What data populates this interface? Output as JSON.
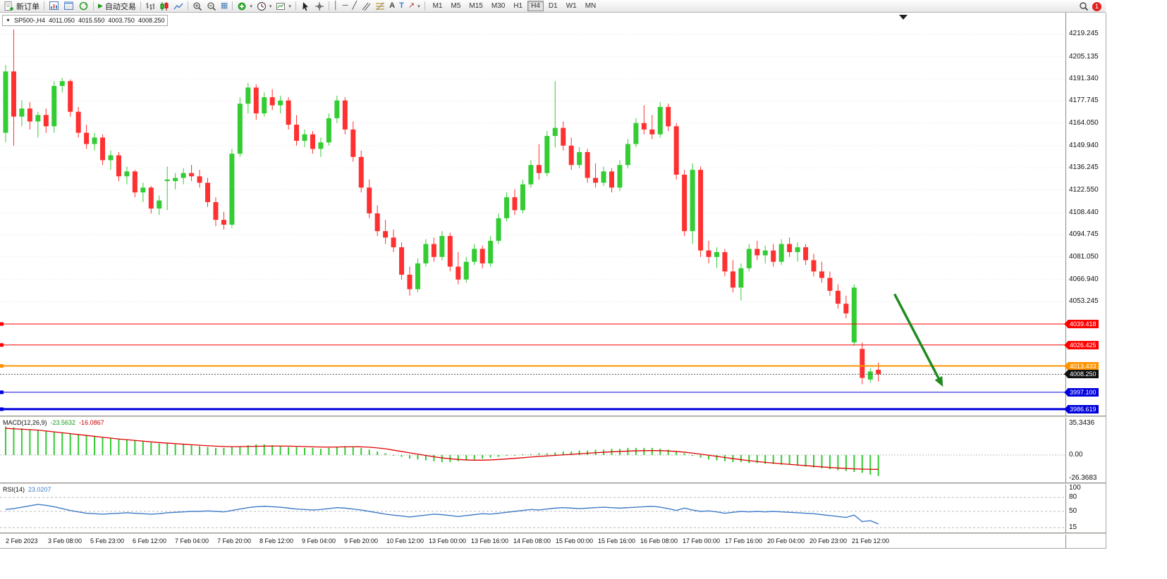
{
  "toolbar": {
    "new_order": "新订单",
    "auto_trading": "自动交易",
    "timeframes": [
      "M1",
      "M5",
      "M15",
      "M30",
      "H1",
      "H4",
      "D1",
      "W1",
      "MN"
    ],
    "active_timeframe": "H4",
    "notification_count": "1"
  },
  "icons": {
    "collapse": "▼",
    "dropdown": "▾",
    "play": "▶",
    "tile": "▦",
    "vertical_line": "│",
    "horizontal_line": "─",
    "trend_line": "╱",
    "text_tool": "A",
    "label_tool": "T",
    "arrow_tool": "↗"
  },
  "chart_header": {
    "symbol_period": "SP500-,H4",
    "open": "4011.050",
    "high": "4015.550",
    "low": "4003.750",
    "close": "4008.250"
  },
  "indicators": {
    "macd_title": "MACD(12,26,9)",
    "macd_main": "-23.5632",
    "macd_signal": "-16.0867",
    "rsi_title": "RSI(14)",
    "rsi_value": "23.0207"
  },
  "colors": {
    "bull": "#33CC33",
    "bear": "#FF3030",
    "macd_hist": "#33CC33",
    "macd_signal": "#E00000",
    "rsi_line": "#3E7BC8",
    "grid": "#E2E2E2",
    "arrow": "#1F8B1F"
  },
  "chart_data": [
    {
      "type": "candlestick",
      "title": "SP500-,H4",
      "ylim": [
        3982.6,
        4232.4
      ],
      "y_ticks": [
        "4219.245",
        "4205.135",
        "4191.340",
        "4177.745",
        "4164.050",
        "4149.940",
        "4136.245",
        "4122.550",
        "4108.440",
        "4094.745",
        "4081.050",
        "4066.940",
        "4053.245"
      ],
      "x_labels": [
        "2 Feb 2023",
        "3 Feb 08:00",
        "5 Feb 23:00",
        "6 Feb 12:00",
        "7 Feb 04:00",
        "7 Feb 20:00",
        "8 Feb 12:00",
        "9 Feb 04:00",
        "9 Feb 20:00",
        "10 Feb 12:00",
        "13 Feb 00:00",
        "13 Feb 16:00",
        "14 Feb 08:00",
        "15 Feb 00:00",
        "15 Feb 16:00",
        "16 Feb 08:00",
        "17 Feb 00:00",
        "17 Feb 16:00",
        "20 Feb 04:00",
        "20 Feb 23:00",
        "21 Feb 12:00"
      ],
      "ohlc": [
        [
          4158,
          4200,
          4152,
          4196
        ],
        [
          4196,
          4222,
          4150,
          4168
        ],
        [
          4168,
          4178,
          4162,
          4173
        ],
        [
          4173,
          4177,
          4160,
          4165
        ],
        [
          4165,
          4171,
          4155,
          4169
        ],
        [
          4169,
          4173,
          4158,
          4162
        ],
        [
          4162,
          4190,
          4158,
          4187
        ],
        [
          4187,
          4192,
          4183,
          4190
        ],
        [
          4190,
          4191,
          4168,
          4171
        ],
        [
          4171,
          4174,
          4155,
          4158
        ],
        [
          4158,
          4163,
          4148,
          4151
        ],
        [
          4151,
          4158,
          4147,
          4155
        ],
        [
          4155,
          4157,
          4138,
          4141
        ],
        [
          4141,
          4147,
          4135,
          4144
        ],
        [
          4144,
          4146,
          4128,
          4131
        ],
        [
          4131,
          4137,
          4126,
          4134
        ],
        [
          4134,
          4135,
          4118,
          4121
        ],
        [
          4121,
          4127,
          4115,
          4124
        ],
        [
          4124,
          4125,
          4108,
          4111
        ],
        [
          4111,
          4119,
          4107,
          4116
        ],
        [
          4128,
          4137,
          4110,
          4129
        ],
        [
          4128,
          4133,
          4123,
          4130
        ],
        [
          4130,
          4136,
          4126,
          4133
        ],
        [
          4133,
          4138,
          4128,
          4131
        ],
        [
          4131,
          4135,
          4124,
          4127
        ],
        [
          4127,
          4130,
          4112,
          4115
        ],
        [
          4115,
          4118,
          4100,
          4104
        ],
        [
          4104,
          4109,
          4098,
          4101
        ],
        [
          4101,
          4148,
          4099,
          4145
        ],
        [
          4145,
          4180,
          4143,
          4176
        ],
        [
          4176,
          4189,
          4170,
          4186
        ],
        [
          4186,
          4188,
          4166,
          4170
        ],
        [
          4170,
          4183,
          4168,
          4180
        ],
        [
          4180,
          4185,
          4172,
          4175
        ],
        [
          4175,
          4181,
          4170,
          4178
        ],
        [
          4178,
          4180,
          4160,
          4163
        ],
        [
          4163,
          4169,
          4150,
          4153
        ],
        [
          4153,
          4160,
          4149,
          4157
        ],
        [
          4157,
          4159,
          4145,
          4148
        ],
        [
          4148,
          4155,
          4143,
          4152
        ],
        [
          4152,
          4170,
          4150,
          4167
        ],
        [
          4167,
          4181,
          4164,
          4178
        ],
        [
          4178,
          4180,
          4157,
          4160
        ],
        [
          4160,
          4165,
          4140,
          4143
        ],
        [
          4143,
          4147,
          4121,
          4124
        ],
        [
          4124,
          4129,
          4105,
          4108
        ],
        [
          4108,
          4113,
          4094,
          4097
        ],
        [
          4097,
          4104,
          4089,
          4093
        ],
        [
          4093,
          4098,
          4084,
          4087
        ],
        [
          4087,
          4090,
          4067,
          4070
        ],
        [
          4070,
          4075,
          4057,
          4061
        ],
        [
          4061,
          4080,
          4059,
          4077
        ],
        [
          4077,
          4092,
          4075,
          4089
        ],
        [
          4089,
          4093,
          4078,
          4081
        ],
        [
          4081,
          4097,
          4079,
          4094
        ],
        [
          4094,
          4096,
          4072,
          4075
        ],
        [
          4075,
          4084,
          4064,
          4067
        ],
        [
          4067,
          4081,
          4065,
          4078
        ],
        [
          4078,
          4089,
          4076,
          4086
        ],
        [
          4086,
          4088,
          4074,
          4077
        ],
        [
          4077,
          4094,
          4075,
          4091
        ],
        [
          4091,
          4108,
          4089,
          4105
        ],
        [
          4105,
          4121,
          4103,
          4118
        ],
        [
          4118,
          4123,
          4107,
          4110
        ],
        [
          4110,
          4129,
          4108,
          4126
        ],
        [
          4126,
          4141,
          4124,
          4138
        ],
        [
          4138,
          4151,
          4129,
          4133
        ],
        [
          4133,
          4159,
          4131,
          4156
        ],
        [
          4156,
          4190,
          4149,
          4161
        ],
        [
          4161,
          4165,
          4147,
          4150
        ],
        [
          4150,
          4155,
          4135,
          4138
        ],
        [
          4138,
          4149,
          4136,
          4146
        ],
        [
          4146,
          4148,
          4127,
          4130
        ],
        [
          4130,
          4139,
          4124,
          4127
        ],
        [
          4127,
          4137,
          4125,
          4134
        ],
        [
          4134,
          4136,
          4121,
          4124
        ],
        [
          4124,
          4141,
          4122,
          4138
        ],
        [
          4138,
          4154,
          4136,
          4151
        ],
        [
          4151,
          4167,
          4149,
          4164
        ],
        [
          4164,
          4175,
          4157,
          4160
        ],
        [
          4160,
          4169,
          4154,
          4157
        ],
        [
          4157,
          4177,
          4155,
          4174
        ],
        [
          4174,
          4176,
          4159,
          4162
        ],
        [
          4162,
          4164,
          4129,
          4132
        ],
        [
          4132,
          4135,
          4094,
          4097
        ],
        [
          4097,
          4139,
          4089,
          4135
        ],
        [
          4135,
          4137,
          4081,
          4085
        ],
        [
          4085,
          4091,
          4077,
          4081
        ],
        [
          4081,
          4087,
          4074,
          4084
        ],
        [
          4084,
          4086,
          4069,
          4072
        ],
        [
          4072,
          4079,
          4059,
          4062
        ],
        [
          4062,
          4077,
          4054,
          4074
        ],
        [
          4074,
          4089,
          4072,
          4086
        ],
        [
          4086,
          4091,
          4079,
          4082
        ],
        [
          4082,
          4088,
          4077,
          4085
        ],
        [
          4085,
          4089,
          4075,
          4078
        ],
        [
          4078,
          4092,
          4076,
          4089
        ],
        [
          4089,
          4093,
          4081,
          4084
        ],
        [
          4084,
          4090,
          4078,
          4087
        ],
        [
          4087,
          4089,
          4076,
          4079
        ],
        [
          4079,
          4083,
          4069,
          4072
        ],
        [
          4072,
          4078,
          4065,
          4068
        ],
        [
          4068,
          4072,
          4057,
          4060
        ],
        [
          4060,
          4064,
          4049,
          4052
        ],
        [
          4052,
          4057,
          4043,
          4046
        ],
        [
          4028,
          4064,
          4026,
          4062
        ],
        [
          4024,
          4028,
          4002,
          4006
        ],
        [
          4005,
          4012,
          4003,
          4010
        ],
        [
          4011.05,
          4015.55,
          4003.75,
          4008.25
        ]
      ],
      "h_lines": [
        {
          "price": 4039.418,
          "label": "4039.418",
          "color": "#FF0000",
          "width": 1
        },
        {
          "price": 4026.425,
          "label": "4026.425",
          "color": "#FF0000",
          "width": 1
        },
        {
          "price": 4013.433,
          "label": "4013.433",
          "color": "#FF9400",
          "width": 2
        },
        {
          "price": 3997.1,
          "label": "3997.100",
          "color": "#0000DC",
          "width": 1
        },
        {
          "price": 3986.619,
          "label": "3986.619",
          "color": "#0000DC",
          "width": 3
        }
      ],
      "current_price": {
        "value": 4008.25,
        "label": "4008.250",
        "color": "#111111"
      },
      "trend_arrow": {
        "from": {
          "index": 110,
          "price": 4058
        },
        "to": {
          "index": 116,
          "price": 4000.5
        }
      }
    },
    {
      "type": "bar",
      "name": "MACD",
      "params": "12,26,9",
      "main_value": -23.5632,
      "signal_value": -16.0867,
      "ylim": [
        -26.3683,
        35.3436
      ],
      "y_ticks": [
        "35.3436",
        "0.00",
        "-26.3683"
      ],
      "histogram": [
        32,
        31,
        30,
        29,
        28,
        27,
        26,
        25,
        24,
        23,
        22,
        21,
        20,
        19,
        18,
        17,
        16,
        15,
        14,
        13,
        13,
        12,
        12,
        11,
        10,
        9,
        8,
        8,
        9,
        10,
        11,
        12,
        12,
        11,
        10,
        9,
        9,
        8,
        8,
        7,
        8,
        9,
        10,
        9,
        8,
        6,
        4,
        2,
        0,
        -2,
        -4,
        -5,
        -6,
        -7,
        -8,
        -8,
        -7,
        -6,
        -5,
        -4,
        -3,
        -2,
        -1,
        0,
        1,
        1,
        2,
        2,
        3,
        4,
        4,
        5,
        5,
        6,
        6,
        7,
        7,
        8,
        8,
        8,
        8,
        7,
        6,
        4,
        2,
        -1,
        -3,
        -5,
        -6,
        -7,
        -8,
        -8,
        -9,
        -9,
        -10,
        -10,
        -11,
        -11,
        -12,
        -13,
        -14,
        -15,
        -16,
        -17,
        -18,
        -19,
        -20,
        -22,
        -23.5632
      ],
      "signal": [
        30,
        29.5,
        29,
        28.5,
        28,
        27,
        26,
        25,
        24,
        23,
        22,
        21,
        20,
        19,
        18,
        17.2,
        16.4,
        15.6,
        14.8,
        14,
        13.4,
        12.8,
        12.2,
        11.6,
        11,
        10.5,
        10,
        9.6,
        9.4,
        9.4,
        9.6,
        9.8,
        10,
        10.1,
        10.1,
        10,
        9.8,
        9.5,
        9.2,
        9,
        8.9,
        9,
        9.2,
        9.3,
        9.2,
        8.8,
        8,
        7,
        5.5,
        4,
        2.5,
        1,
        -0.5,
        -2,
        -3.2,
        -4.2,
        -5,
        -5.5,
        -5.8,
        -5.8,
        -5.5,
        -5,
        -4.4,
        -3.7,
        -3,
        -2.3,
        -1.6,
        -1,
        -0.4,
        0.2,
        0.8,
        1.4,
        2,
        2.6,
        3.1,
        3.6,
        4,
        4.4,
        4.7,
        4.9,
        5,
        4.9,
        4.6,
        4,
        3.2,
        2.2,
        1,
        -0.2,
        -1.5,
        -2.8,
        -4,
        -5.2,
        -6.3,
        -7.3,
        -8.2,
        -9,
        -9.8,
        -10.5,
        -11.2,
        -11.9,
        -12.6,
        -13.3,
        -14,
        -14.6,
        -15.1,
        -15.5,
        -15.8,
        -16,
        -16.0867
      ]
    },
    {
      "type": "line",
      "name": "RSI",
      "params": "14",
      "value": 23.0207,
      "ylim": [
        15,
        100
      ],
      "y_ticks": [
        "100",
        "80",
        "50",
        "15"
      ],
      "levels": [
        80,
        50,
        15
      ],
      "values": [
        54,
        56,
        59,
        62,
        65,
        63,
        60,
        56,
        52,
        49,
        46,
        45,
        44,
        45,
        46,
        47,
        46,
        45,
        44,
        45,
        47,
        48,
        49,
        50,
        50,
        51,
        50,
        49,
        52,
        55,
        58,
        60,
        61,
        60,
        59,
        57,
        55,
        54,
        53,
        54,
        56,
        58,
        57,
        55,
        53,
        50,
        47,
        44,
        42,
        40,
        38,
        40,
        42,
        44,
        43,
        41,
        39,
        41,
        43,
        45,
        44,
        46,
        48,
        50,
        52,
        54,
        53,
        55,
        57,
        58,
        57,
        56,
        57,
        58,
        59,
        58,
        57,
        58,
        59,
        60,
        61,
        59,
        56,
        52,
        57,
        53,
        50,
        51,
        49,
        46,
        48,
        50,
        49,
        50,
        49,
        50,
        49,
        48,
        47,
        46,
        45,
        43,
        41,
        39,
        37,
        42,
        28,
        30,
        23.0207
      ]
    }
  ]
}
